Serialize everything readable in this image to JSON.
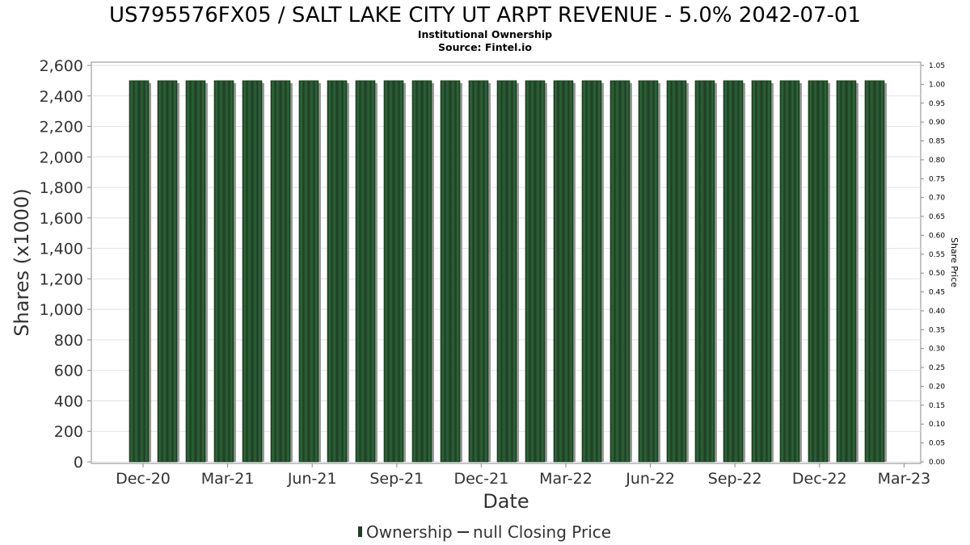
{
  "chart_data": {
    "type": "bar",
    "title": "US795576FX05 / SALT LAKE CITY UT ARPT REVENUE - 5.0% 2042-07-01",
    "subtitle_lines": [
      "Institutional Ownership",
      "Source: Fintel.io"
    ],
    "xlabel": "Date",
    "ylabel": "Shares (x1000)",
    "y2label": "Share Price",
    "ylim": [
      0,
      2600
    ],
    "yticks": [
      0,
      200,
      400,
      600,
      800,
      1000,
      1200,
      1400,
      1600,
      1800,
      2000,
      2200,
      2400,
      2600
    ],
    "ytick_labels": [
      "0",
      "200",
      "400",
      "600",
      "800",
      "1,000",
      "1,200",
      "1,400",
      "1,600",
      "1,800",
      "2,000",
      "2,200",
      "2,400",
      "2,600"
    ],
    "y2lim": [
      0,
      1.05
    ],
    "y2ticks": [
      0,
      0.05,
      0.1,
      0.15,
      0.2,
      0.25,
      0.3,
      0.35,
      0.4,
      0.45,
      0.5,
      0.55,
      0.6,
      0.65,
      0.7,
      0.75,
      0.8,
      0.85,
      0.9,
      0.95,
      1.0,
      1.05
    ],
    "y2tick_labels": [
      "0.00",
      "0.05",
      "0.10",
      "0.15",
      "0.20",
      "0.25",
      "0.30",
      "0.35",
      "0.40",
      "0.45",
      "0.50",
      "0.55",
      "0.60",
      "0.65",
      "0.70",
      "0.75",
      "0.80",
      "0.85",
      "0.90",
      "0.95",
      "1.00",
      "1.05"
    ],
    "xtick_labels": [
      "Dec-20",
      "Mar-21",
      "Jun-21",
      "Sep-21",
      "Dec-21",
      "Mar-22",
      "Jun-22",
      "Sep-22",
      "Dec-22",
      "Mar-23"
    ],
    "bar_count": 27,
    "series": [
      {
        "name": "Ownership",
        "values": [
          2500,
          2500,
          2500,
          2500,
          2500,
          2500,
          2500,
          2500,
          2500,
          2500,
          2500,
          2500,
          2500,
          2500,
          2500,
          2500,
          2500,
          2500,
          2500,
          2500,
          2500,
          2500,
          2500,
          2500,
          2500,
          2500,
          2500
        ]
      }
    ],
    "legend": {
      "position": "bottom",
      "items": [
        {
          "marker": "bar",
          "label": "Ownership"
        },
        {
          "marker": "line",
          "label": "null Closing Price"
        }
      ]
    },
    "grid": true,
    "colors": {
      "bar_dark": "#1e3d24",
      "bar_light": "#2f6a3a",
      "bar_shadow": "#9a9a9a",
      "grid": "#e2e2e2",
      "axis": "#888888"
    }
  }
}
